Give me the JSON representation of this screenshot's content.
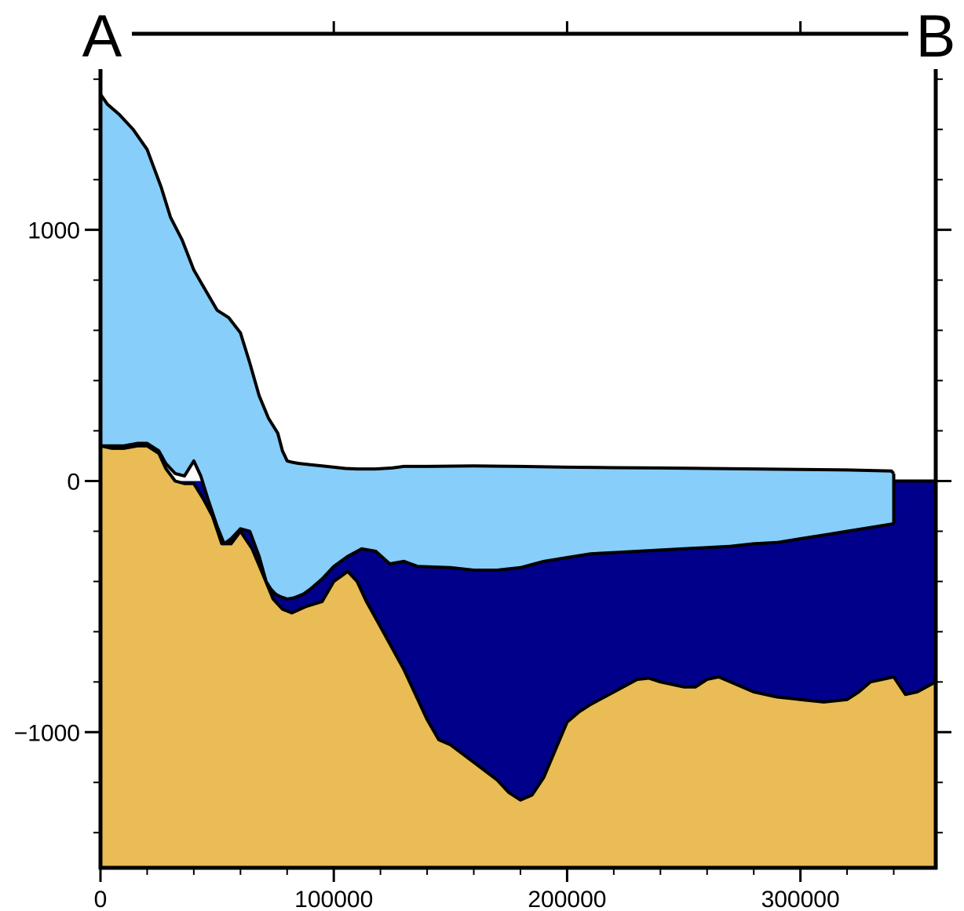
{
  "chart_data": {
    "type": "area",
    "title": "",
    "xlabel": "",
    "ylabel": "",
    "profile_start_label": "A",
    "profile_end_label": "B",
    "xlim": [
      0,
      358000
    ],
    "ylim": [
      -1540,
      1640
    ],
    "x_ticks_major": [
      0,
      100000,
      200000,
      300000
    ],
    "x_tick_labels": [
      "0",
      "100000",
      "200000",
      "300000"
    ],
    "x_ticks_minor_step": 20000,
    "y_ticks_major": [
      -1000,
      0,
      1000
    ],
    "y_tick_labels": [
      "−1000",
      "0",
      "1000"
    ],
    "y_ticks_minor_step": 200,
    "top_axis_ticks": [
      100000,
      200000,
      300000
    ],
    "sea_level": 0,
    "colors": {
      "ice": "#87cefa",
      "ocean": "#00008b",
      "bed": "#e9bc55",
      "outline": "#000000"
    },
    "series": [
      {
        "key": "ice_surface",
        "x": [
          0,
          3000,
          8000,
          14000,
          20000,
          26000,
          30000,
          35000,
          40000,
          45000,
          50000,
          55000,
          60000,
          64000,
          68000,
          72000,
          76000,
          78000,
          80000,
          82000,
          85000,
          90000,
          95000,
          100000,
          105000,
          110000,
          118000,
          125000,
          130000,
          140000,
          160000,
          180000,
          200000,
          220000,
          240000,
          260000,
          280000,
          300000,
          320000,
          339000,
          340000
        ],
        "y": [
          1540,
          1500,
          1460,
          1400,
          1320,
          1170,
          1050,
          960,
          840,
          760,
          680,
          650,
          590,
          470,
          340,
          250,
          190,
          120,
          80,
          75,
          70,
          65,
          60,
          55,
          50,
          48,
          48,
          52,
          58,
          58,
          60,
          58,
          55,
          53,
          52,
          50,
          48,
          46,
          44,
          40,
          30
        ]
      },
      {
        "key": "ice_base",
        "x": [
          0,
          5000,
          10000,
          16000,
          20000,
          25000,
          28000,
          32000,
          36000,
          38000,
          40000,
          43000,
          46000,
          50000,
          53000,
          56000,
          60000,
          64000,
          68000,
          71000,
          73000,
          75000,
          77000,
          80000,
          83000,
          87000,
          90000,
          95000,
          100000,
          106000,
          112000,
          118000,
          124000,
          130000,
          136000,
          150000,
          160000,
          170000,
          180000,
          190000,
          200000,
          210000,
          220000,
          230000,
          240000,
          250000,
          260000,
          270000,
          280000,
          290000,
          300000,
          310000,
          320000,
          330000,
          340000
        ],
        "y": [
          140,
          140,
          140,
          150,
          150,
          120,
          70,
          30,
          20,
          50,
          80,
          20,
          -70,
          -180,
          -250,
          -230,
          -190,
          -200,
          -300,
          -400,
          -430,
          -450,
          -460,
          -470,
          -465,
          -450,
          -430,
          -390,
          -340,
          -300,
          -270,
          -280,
          -330,
          -320,
          -340,
          -345,
          -355,
          -355,
          -345,
          -320,
          -305,
          -290,
          -285,
          -280,
          -275,
          -270,
          -265,
          -260,
          -250,
          -245,
          -230,
          -215,
          -200,
          -185,
          -170
        ]
      },
      {
        "key": "bed",
        "x": [
          0,
          5000,
          10000,
          16000,
          20000,
          25000,
          28000,
          32000,
          36000,
          40000,
          44000,
          48000,
          52000,
          56000,
          60000,
          65000,
          70000,
          74000,
          78000,
          82000,
          88000,
          95000,
          100000,
          106000,
          110000,
          114000,
          120000,
          130000,
          140000,
          145000,
          150000,
          160000,
          170000,
          175000,
          180000,
          185000,
          190000,
          200000,
          205000,
          210000,
          220000,
          230000,
          235000,
          240000,
          250000,
          255000,
          260000,
          265000,
          270000,
          280000,
          290000,
          300000,
          310000,
          320000,
          325000,
          330000,
          340000,
          345000,
          350000,
          358000
        ],
        "y": [
          140,
          130,
          130,
          140,
          140,
          110,
          50,
          0,
          -10,
          -10,
          -70,
          -140,
          -250,
          -250,
          -200,
          -270,
          -380,
          -470,
          -510,
          -525,
          -500,
          -480,
          -400,
          -360,
          -400,
          -480,
          -580,
          -750,
          -950,
          -1030,
          -1050,
          -1120,
          -1190,
          -1240,
          -1270,
          -1250,
          -1180,
          -960,
          -920,
          -890,
          -840,
          -790,
          -785,
          -800,
          -820,
          -820,
          -790,
          -780,
          -800,
          -840,
          -860,
          -870,
          -880,
          -870,
          -840,
          -800,
          -780,
          -850,
          -840,
          -800
        ]
      }
    ]
  }
}
